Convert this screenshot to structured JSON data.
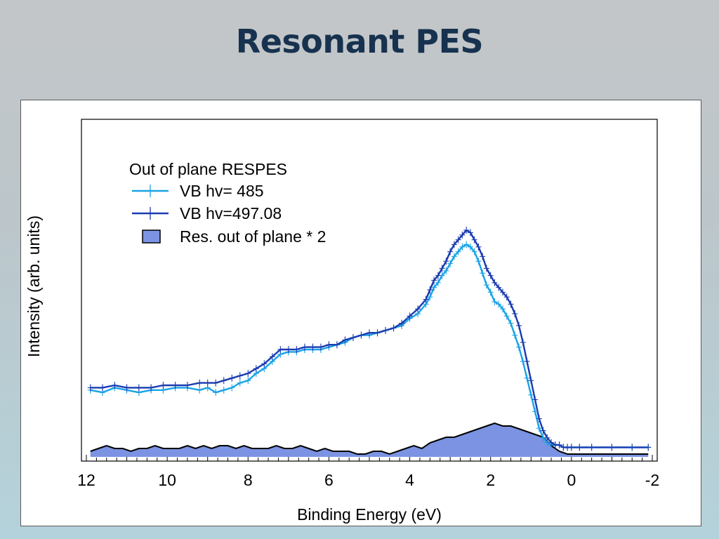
{
  "slide": {
    "title": "Resonant PES"
  },
  "colors": {
    "light_blue": "#19a3e6",
    "dark_blue": "#1a3bb0",
    "fill": "#7b93e2",
    "black": "#000000"
  },
  "chart_data": {
    "type": "line",
    "title": "",
    "xlabel": "Binding Energy (eV)",
    "ylabel": "Intensity (arb. units)",
    "xlim": [
      12,
      -2
    ],
    "ylim": [
      0,
      100
    ],
    "x_reversed": true,
    "x_ticks": [
      "12",
      "10",
      "8",
      "6",
      "4",
      "2",
      "0",
      "-2"
    ],
    "grid": false,
    "legend": {
      "title": "Out of plane RESPES",
      "placement": "top-left",
      "entries": [
        "VB hv= 485",
        "VB hv=497.08",
        "Res. out of plane * 2"
      ]
    },
    "series": [
      {
        "name": "VB hv= 485",
        "color": "#19a3e6",
        "x": [
          11.9,
          11.6,
          11.3,
          11.0,
          10.7,
          10.4,
          10.1,
          9.8,
          9.5,
          9.2,
          9.0,
          8.8,
          8.6,
          8.4,
          8.2,
          8.0,
          7.8,
          7.6,
          7.4,
          7.2,
          7.0,
          6.8,
          6.6,
          6.4,
          6.2,
          6.0,
          5.8,
          5.6,
          5.4,
          5.2,
          5.0,
          4.8,
          4.6,
          4.4,
          4.2,
          4.0,
          3.8,
          3.6,
          3.5,
          3.4,
          3.3,
          3.2,
          3.1,
          3.0,
          2.9,
          2.8,
          2.7,
          2.6,
          2.5,
          2.4,
          2.3,
          2.2,
          2.1,
          2.0,
          1.9,
          1.8,
          1.7,
          1.6,
          1.5,
          1.4,
          1.3,
          1.2,
          1.1,
          1.0,
          0.9,
          0.8,
          0.7,
          0.6,
          0.5,
          0.4,
          0.3,
          0.2,
          0.1,
          0.0,
          -0.2,
          -0.5,
          -1.0,
          -1.5,
          -1.9
        ],
        "y": [
          28,
          27,
          29,
          28,
          27,
          28,
          28,
          29,
          29,
          28,
          29,
          27,
          28,
          29,
          31,
          32,
          35,
          37,
          40,
          43,
          44,
          44,
          45,
          45,
          45,
          46,
          47,
          48,
          50,
          51,
          51,
          52,
          53,
          54,
          55,
          58,
          60,
          64,
          67,
          71,
          73,
          76,
          78,
          81,
          84,
          86,
          88,
          89,
          88,
          86,
          82,
          77,
          72,
          69,
          65,
          64,
          62,
          59,
          56,
          51,
          46,
          40,
          33,
          26,
          19,
          12,
          8,
          6,
          5,
          5,
          5,
          4,
          4,
          4,
          4,
          4,
          4,
          4,
          4
        ]
      },
      {
        "name": "VB hv=497.08",
        "color": "#1a3bb0",
        "x": [
          11.9,
          11.6,
          11.3,
          11.0,
          10.7,
          10.4,
          10.1,
          9.8,
          9.5,
          9.2,
          9.0,
          8.8,
          8.6,
          8.4,
          8.2,
          8.0,
          7.8,
          7.6,
          7.4,
          7.2,
          7.0,
          6.8,
          6.6,
          6.4,
          6.2,
          6.0,
          5.8,
          5.6,
          5.4,
          5.2,
          5.0,
          4.8,
          4.6,
          4.4,
          4.2,
          4.0,
          3.8,
          3.6,
          3.5,
          3.4,
          3.3,
          3.2,
          3.1,
          3.0,
          2.9,
          2.8,
          2.7,
          2.6,
          2.5,
          2.4,
          2.3,
          2.2,
          2.1,
          2.0,
          1.9,
          1.8,
          1.7,
          1.6,
          1.5,
          1.4,
          1.3,
          1.2,
          1.1,
          1.0,
          0.9,
          0.8,
          0.7,
          0.6,
          0.5,
          0.4,
          0.3,
          0.2,
          0.1,
          0.0,
          -0.2,
          -0.5,
          -1.0,
          -1.5,
          -1.9
        ],
        "y": [
          29,
          29,
          30,
          29,
          29,
          29,
          30,
          30,
          30,
          31,
          31,
          31,
          32,
          33,
          34,
          35,
          37,
          39,
          42,
          45,
          45,
          45,
          46,
          46,
          46,
          47,
          47,
          49,
          50,
          51,
          52,
          52,
          53,
          54,
          56,
          59,
          62,
          66,
          70,
          74,
          76,
          79,
          82,
          86,
          89,
          91,
          93,
          95,
          94,
          91,
          88,
          84,
          79,
          76,
          73,
          71,
          69,
          67,
          64,
          60,
          55,
          48,
          40,
          32,
          24,
          16,
          11,
          8,
          6,
          5,
          5,
          4,
          4,
          4,
          4,
          4,
          4,
          4,
          4
        ]
      },
      {
        "name": "Res. out of plane * 2",
        "color": "#7b93e2",
        "x": [
          11.9,
          11.7,
          11.5,
          11.3,
          11.1,
          10.9,
          10.7,
          10.5,
          10.3,
          10.1,
          9.9,
          9.7,
          9.5,
          9.3,
          9.1,
          8.9,
          8.7,
          8.5,
          8.3,
          8.1,
          7.9,
          7.7,
          7.5,
          7.3,
          7.1,
          6.9,
          6.7,
          6.5,
          6.3,
          6.1,
          5.9,
          5.7,
          5.5,
          5.3,
          5.1,
          4.9,
          4.7,
          4.5,
          4.3,
          4.1,
          3.9,
          3.7,
          3.5,
          3.3,
          3.1,
          2.9,
          2.7,
          2.5,
          2.3,
          2.1,
          1.9,
          1.7,
          1.5,
          1.3,
          1.1,
          0.9,
          0.7,
          0.5,
          0.3,
          0.1,
          -0.1,
          -0.4,
          -0.8,
          -1.2,
          -1.6,
          -1.9
        ],
        "y": [
          2,
          3,
          4,
          3,
          3,
          2,
          3,
          3,
          4,
          3,
          3,
          3,
          4,
          3,
          4,
          3,
          4,
          4,
          3,
          4,
          3,
          3,
          3,
          4,
          3,
          3,
          4,
          3,
          2,
          3,
          2,
          2,
          2,
          1,
          1,
          2,
          2,
          1,
          2,
          3,
          4,
          3,
          5,
          6,
          7,
          7,
          8,
          9,
          10,
          11,
          12,
          11,
          11,
          10,
          9,
          8,
          7,
          4,
          2,
          1,
          1,
          1,
          1,
          1,
          1,
          1
        ]
      }
    ]
  }
}
